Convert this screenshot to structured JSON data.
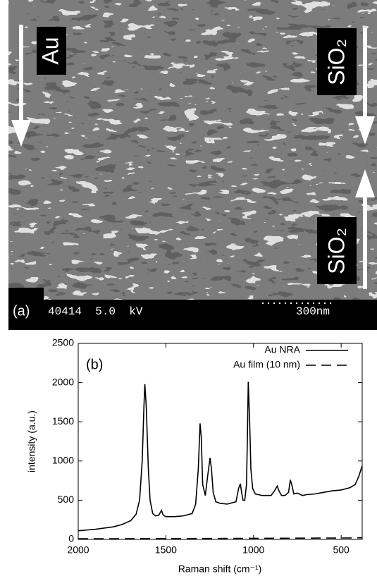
{
  "image_labels": {
    "panel": "(a)",
    "arrows": [
      "Au",
      "SiO₂",
      "SiO₂"
    ],
    "info": "40414  5.0  kV",
    "scale": "300nm"
  },
  "chart_data": {
    "type": "line",
    "panel": "(b)",
    "x_label": "Raman shift (cm⁻¹)",
    "y_label": "intensity (a.u.)",
    "xlim": [
      2000,
      380
    ],
    "xticks": [
      2000,
      1500,
      1000,
      500
    ],
    "ylim": [
      0,
      2500
    ],
    "yticks": [
      0,
      500,
      1000,
      1500,
      2000,
      2500
    ],
    "legend": "top-right",
    "series": [
      {
        "name": "Au NRA",
        "color": "#000000",
        "line_style": "solid",
        "x": [
          2000,
          1900,
          1800,
          1750,
          1700,
          1670,
          1650,
          1635,
          1625,
          1620,
          1612,
          1600,
          1590,
          1575,
          1560,
          1540,
          1525,
          1515,
          1500,
          1450,
          1400,
          1350,
          1330,
          1315,
          1305,
          1298,
          1290,
          1275,
          1262,
          1248,
          1240,
          1230,
          1215,
          1190,
          1150,
          1100,
          1085,
          1075,
          1068,
          1060,
          1050,
          1040,
          1035,
          1030,
          1022,
          1015,
          1005,
          990,
          950,
          900,
          880,
          865,
          855,
          840,
          820,
          800,
          790,
          780,
          770,
          750,
          720,
          700,
          650,
          600,
          550,
          500,
          450,
          420,
          400,
          380
        ],
        "values": [
          110,
          130,
          160,
          190,
          240,
          320,
          500,
          1000,
          1700,
          1980,
          1700,
          900,
          500,
          330,
          300,
          310,
          370,
          310,
          290,
          290,
          300,
          330,
          450,
          900,
          1480,
          1300,
          700,
          560,
          800,
          1040,
          900,
          600,
          480,
          460,
          450,
          480,
          650,
          710,
          600,
          500,
          500,
          700,
          1300,
          2010,
          1500,
          900,
          650,
          580,
          560,
          560,
          620,
          680,
          620,
          560,
          560,
          600,
          760,
          680,
          580,
          590,
          560,
          570,
          580,
          600,
          620,
          630,
          660,
          700,
          800,
          940
        ]
      },
      {
        "name": "Au film (10 nm)",
        "color": "#000000",
        "line_style": "dashed",
        "x": [
          2000,
          1500,
          1000,
          500,
          380
        ],
        "values": [
          8,
          10,
          14,
          18,
          20
        ]
      }
    ]
  }
}
